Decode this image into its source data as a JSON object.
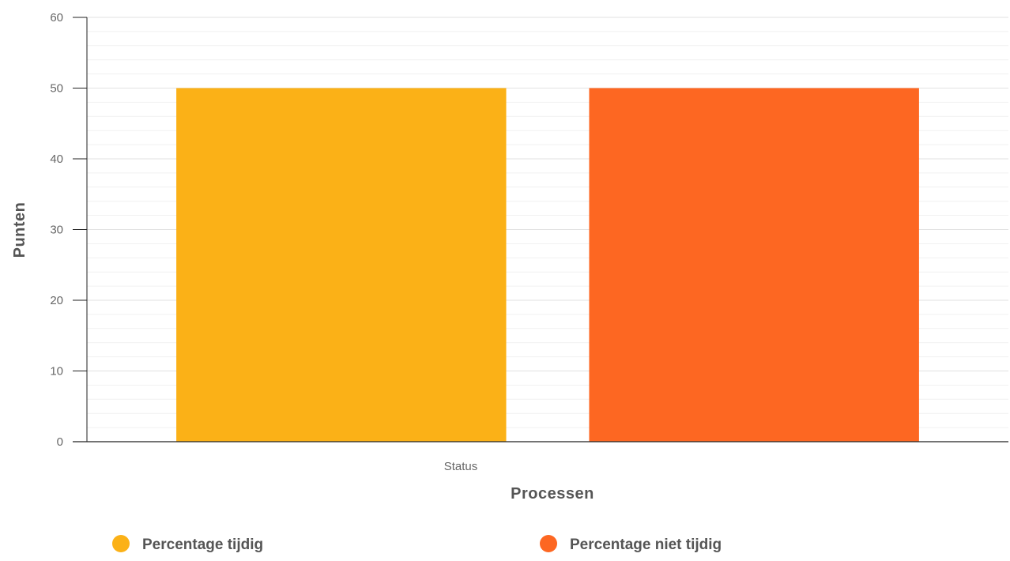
{
  "chart_data": {
    "type": "bar",
    "categories": [
      "Status"
    ],
    "series": [
      {
        "name": "Percentage tijdig",
        "values": [
          50
        ],
        "color": "#FBB117"
      },
      {
        "name": "Percentage niet tijdig",
        "values": [
          50
        ],
        "color": "#FD6722"
      }
    ],
    "xlabel": "Processen",
    "ylabel": "Punten",
    "ylim": [
      0,
      60
    ],
    "yticks": [
      0,
      10,
      20,
      30,
      40,
      50,
      60
    ],
    "grid": true,
    "legend_position": "bottom"
  }
}
